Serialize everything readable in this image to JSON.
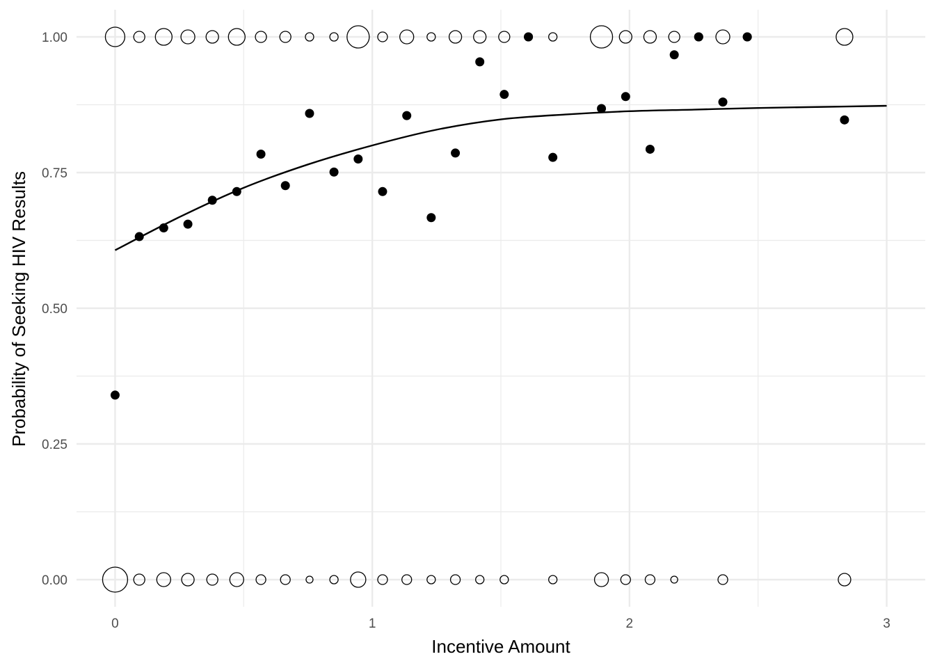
{
  "chart_data": {
    "type": "scatter",
    "xlabel": "Incentive Amount",
    "ylabel": "Probability of Seeking HIV Results",
    "xlim": [
      -0.15,
      3.15
    ],
    "ylim": [
      -0.05,
      1.05
    ],
    "x_ticks": [
      0,
      1,
      2,
      3
    ],
    "x_tick_labels": [
      "0",
      "1",
      "2",
      "3"
    ],
    "y_ticks": [
      0,
      0.25,
      0.5,
      0.75,
      1
    ],
    "y_tick_labels": [
      "0.00",
      "0.25",
      "0.50",
      "0.75",
      "1.00"
    ],
    "grid": true,
    "colors": {
      "points": "#000000",
      "grid": "#ebebeb",
      "line": "#000000"
    },
    "series": [
      {
        "kind": "jittered-observations-y1",
        "marker": "open-circle-size-by-count",
        "points": [
          {
            "x": 0.0,
            "y": 1,
            "size": 6
          },
          {
            "x": 0.094,
            "y": 1,
            "size": 3
          },
          {
            "x": 0.189,
            "y": 1,
            "size": 5
          },
          {
            "x": 0.283,
            "y": 1,
            "size": 4
          },
          {
            "x": 0.378,
            "y": 1,
            "size": 3.5
          },
          {
            "x": 0.473,
            "y": 1,
            "size": 5
          },
          {
            "x": 0.567,
            "y": 1,
            "size": 3
          },
          {
            "x": 0.662,
            "y": 1,
            "size": 3
          },
          {
            "x": 0.756,
            "y": 1,
            "size": 2
          },
          {
            "x": 0.851,
            "y": 1,
            "size": 2
          },
          {
            "x": 0.945,
            "y": 1,
            "size": 7
          },
          {
            "x": 1.04,
            "y": 1,
            "size": 2.5
          },
          {
            "x": 1.134,
            "y": 1,
            "size": 4
          },
          {
            "x": 1.229,
            "y": 1,
            "size": 2
          },
          {
            "x": 1.323,
            "y": 1,
            "size": 3.5
          },
          {
            "x": 1.418,
            "y": 1,
            "size": 3.5
          },
          {
            "x": 1.513,
            "y": 1,
            "size": 3
          },
          {
            "x": 1.607,
            "y": 1,
            "size": 0,
            "filled": true
          },
          {
            "x": 1.702,
            "y": 1,
            "size": 2
          },
          {
            "x": 1.891,
            "y": 1,
            "size": 7
          },
          {
            "x": 1.985,
            "y": 1,
            "size": 3.5
          },
          {
            "x": 2.08,
            "y": 1,
            "size": 3.5
          },
          {
            "x": 2.174,
            "y": 1,
            "size": 3
          },
          {
            "x": 2.269,
            "y": 1,
            "size": 0,
            "filled": true
          },
          {
            "x": 2.363,
            "y": 1,
            "size": 4
          },
          {
            "x": 2.458,
            "y": 1,
            "size": 0,
            "filled": true
          },
          {
            "x": 2.836,
            "y": 1,
            "size": 5
          }
        ]
      },
      {
        "kind": "jittered-observations-y0",
        "marker": "open-circle-size-by-count",
        "points": [
          {
            "x": 0.0,
            "y": 0,
            "size": 8
          },
          {
            "x": 0.094,
            "y": 0,
            "size": 3
          },
          {
            "x": 0.189,
            "y": 0,
            "size": 4
          },
          {
            "x": 0.283,
            "y": 0,
            "size": 3.5
          },
          {
            "x": 0.378,
            "y": 0,
            "size": 3
          },
          {
            "x": 0.473,
            "y": 0,
            "size": 4
          },
          {
            "x": 0.567,
            "y": 0,
            "size": 2.5
          },
          {
            "x": 0.662,
            "y": 0,
            "size": 2.5
          },
          {
            "x": 0.756,
            "y": 0,
            "size": 1.5
          },
          {
            "x": 0.851,
            "y": 0,
            "size": 2
          },
          {
            "x": 0.945,
            "y": 0,
            "size": 4.5
          },
          {
            "x": 1.04,
            "y": 0,
            "size": 2.5
          },
          {
            "x": 1.134,
            "y": 0,
            "size": 2.5
          },
          {
            "x": 1.229,
            "y": 0,
            "size": 2
          },
          {
            "x": 1.323,
            "y": 0,
            "size": 2.5
          },
          {
            "x": 1.418,
            "y": 0,
            "size": 2
          },
          {
            "x": 1.513,
            "y": 0,
            "size": 2
          },
          {
            "x": 1.702,
            "y": 0,
            "size": 2
          },
          {
            "x": 1.891,
            "y": 0,
            "size": 4
          },
          {
            "x": 1.985,
            "y": 0,
            "size": 2.5
          },
          {
            "x": 2.08,
            "y": 0,
            "size": 2.5
          },
          {
            "x": 2.174,
            "y": 0,
            "size": 1.5
          },
          {
            "x": 2.363,
            "y": 0,
            "size": 2.5
          },
          {
            "x": 2.836,
            "y": 0,
            "size": 3.5
          }
        ]
      },
      {
        "kind": "group-proportions",
        "marker": "filled-circle",
        "points": [
          {
            "x": 0.0,
            "y": 0.34
          },
          {
            "x": 0.094,
            "y": 0.632
          },
          {
            "x": 0.189,
            "y": 0.648
          },
          {
            "x": 0.283,
            "y": 0.655
          },
          {
            "x": 0.378,
            "y": 0.699
          },
          {
            "x": 0.473,
            "y": 0.715
          },
          {
            "x": 0.567,
            "y": 0.784
          },
          {
            "x": 0.662,
            "y": 0.726
          },
          {
            "x": 0.756,
            "y": 0.859
          },
          {
            "x": 0.851,
            "y": 0.751
          },
          {
            "x": 0.945,
            "y": 0.775
          },
          {
            "x": 1.04,
            "y": 0.715
          },
          {
            "x": 1.134,
            "y": 0.855
          },
          {
            "x": 1.229,
            "y": 0.667
          },
          {
            "x": 1.323,
            "y": 0.786
          },
          {
            "x": 1.418,
            "y": 0.954
          },
          {
            "x": 1.513,
            "y": 0.894
          },
          {
            "x": 1.607,
            "y": 1.0
          },
          {
            "x": 1.702,
            "y": 0.778
          },
          {
            "x": 1.891,
            "y": 0.868
          },
          {
            "x": 1.985,
            "y": 0.89
          },
          {
            "x": 2.08,
            "y": 0.793
          },
          {
            "x": 2.174,
            "y": 0.967
          },
          {
            "x": 2.269,
            "y": 1.0
          },
          {
            "x": 2.363,
            "y": 0.88
          },
          {
            "x": 2.458,
            "y": 1.0
          },
          {
            "x": 2.836,
            "y": 0.847
          }
        ]
      },
      {
        "kind": "fitted-curve",
        "marker": "line",
        "x": [
          0.0,
          0.25,
          0.5,
          0.75,
          1.0,
          1.25,
          1.5,
          1.75,
          2.0,
          2.25,
          2.5,
          2.75,
          3.0
        ],
        "y": [
          0.607,
          0.668,
          0.722,
          0.765,
          0.8,
          0.829,
          0.848,
          0.857,
          0.863,
          0.866,
          0.869,
          0.871,
          0.873
        ]
      }
    ]
  }
}
